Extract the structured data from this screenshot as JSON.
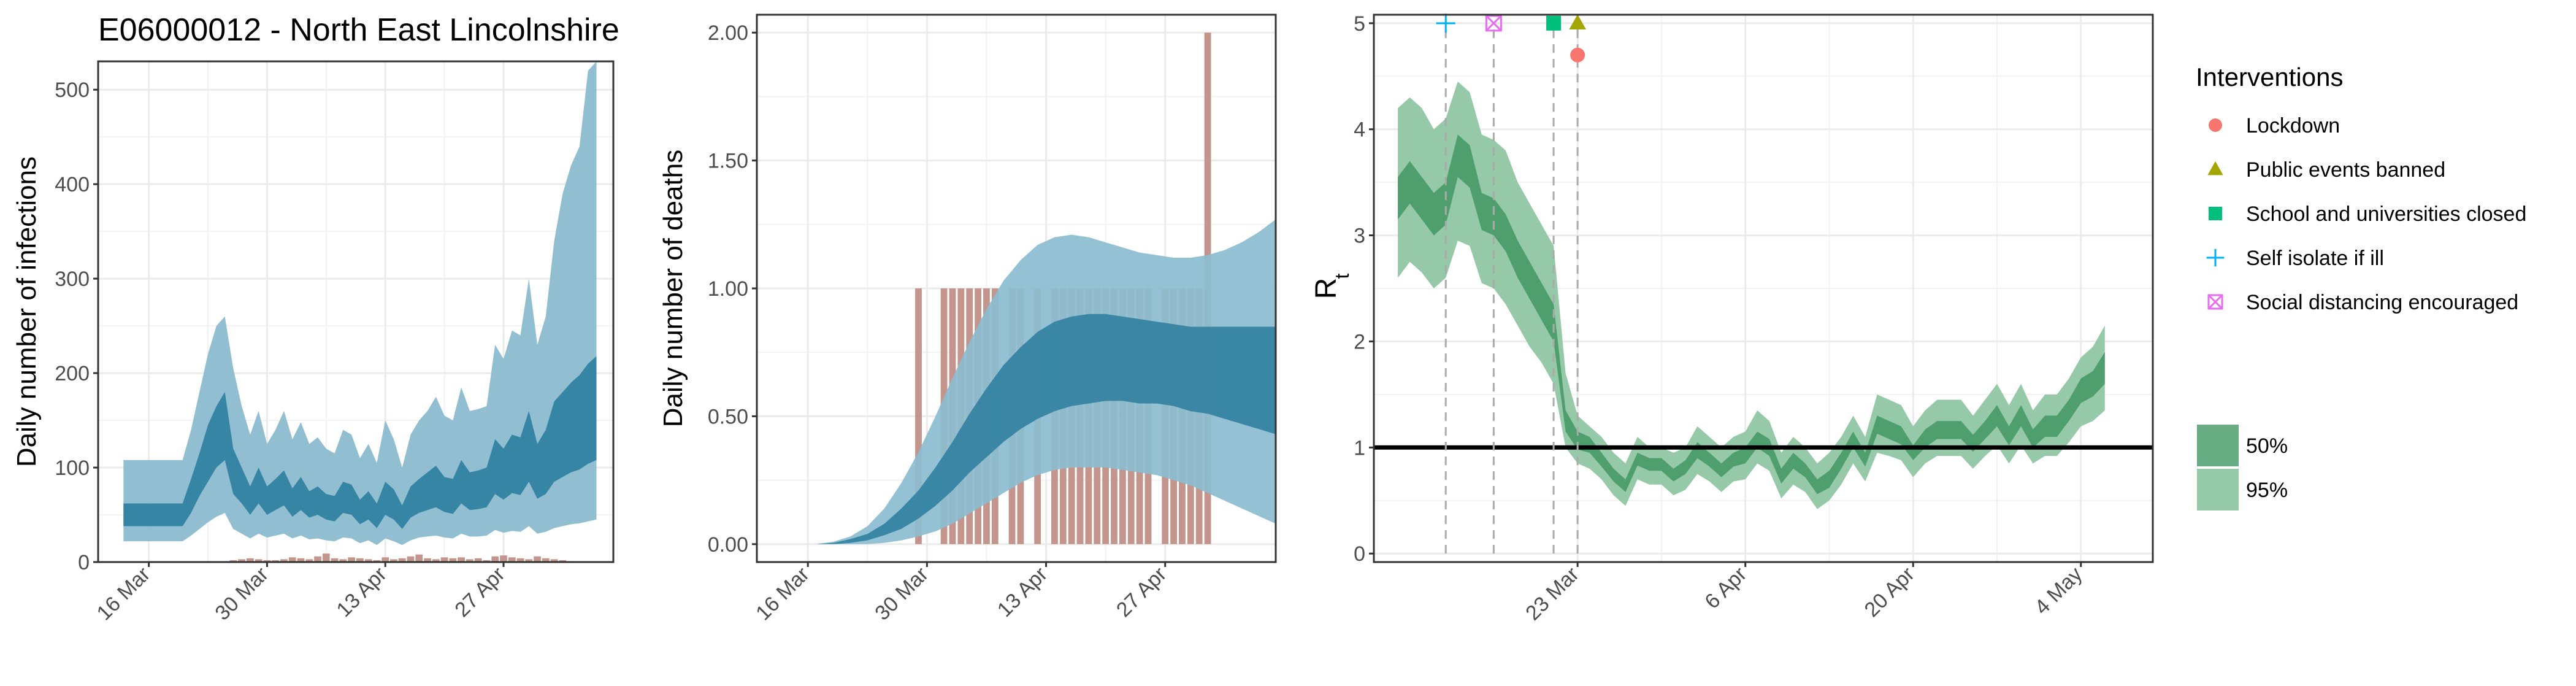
{
  "figure": {
    "region_title": "E06000012 - North East Lincolnshire",
    "colors": {
      "ribbon_outer": "#8BBCCF",
      "ribbon_inner": "#2E7E9E",
      "bars": "#C4958C",
      "rt_outer": "#95C9A8",
      "rt_inner": "#4E9E6E",
      "reference_line": "#000000",
      "gridline": "#EBEBEB",
      "panel_border": "#333333"
    }
  },
  "chart_data": [
    {
      "type": "area",
      "id": "infections",
      "ylabel": "Daily number of infections",
      "xlabel": "",
      "xticks": [
        "16 Mar",
        "30 Mar",
        "13 Apr",
        "27 Apr"
      ],
      "xlim": [
        "2020-03-10",
        "2020-05-10"
      ],
      "ylim": [
        0,
        530
      ],
      "yticks": [
        0,
        100,
        200,
        300,
        400,
        500
      ],
      "grid": true,
      "x": [
        "2020-03-13",
        "2020-03-14",
        "2020-03-15",
        "2020-03-16",
        "2020-03-17",
        "2020-03-18",
        "2020-03-19",
        "2020-03-20",
        "2020-03-21",
        "2020-03-22",
        "2020-03-23",
        "2020-03-24",
        "2020-03-25",
        "2020-03-26",
        "2020-03-27",
        "2020-03-28",
        "2020-03-29",
        "2020-03-30",
        "2020-03-31",
        "2020-04-01",
        "2020-04-02",
        "2020-04-03",
        "2020-04-04",
        "2020-04-05",
        "2020-04-06",
        "2020-04-07",
        "2020-04-08",
        "2020-04-09",
        "2020-04-10",
        "2020-04-11",
        "2020-04-12",
        "2020-04-13",
        "2020-04-14",
        "2020-04-15",
        "2020-04-16",
        "2020-04-17",
        "2020-04-18",
        "2020-04-19",
        "2020-04-20",
        "2020-04-21",
        "2020-04-22",
        "2020-04-23",
        "2020-04-24",
        "2020-04-25",
        "2020-04-26",
        "2020-04-27",
        "2020-04-28",
        "2020-04-29",
        "2020-04-30",
        "2020-05-01",
        "2020-05-02",
        "2020-05-03",
        "2020-05-04",
        "2020-05-05",
        "2020-05-06",
        "2020-05-07",
        "2020-05-08"
      ],
      "ci95_upper": [
        108,
        108,
        108,
        108,
        108,
        108,
        108,
        108,
        140,
        180,
        220,
        250,
        260,
        205,
        165,
        135,
        160,
        125,
        140,
        160,
        130,
        148,
        125,
        132,
        120,
        115,
        140,
        135,
        110,
        125,
        105,
        150,
        130,
        100,
        135,
        150,
        160,
        175,
        155,
        150,
        185,
        160,
        162,
        165,
        230,
        215,
        245,
        240,
        300,
        230,
        260,
        340,
        390,
        420,
        440,
        520,
        530
      ],
      "ci50_upper": [
        62,
        62,
        62,
        62,
        62,
        62,
        62,
        62,
        88,
        115,
        145,
        165,
        180,
        120,
        100,
        80,
        100,
        80,
        88,
        97,
        78,
        90,
        75,
        80,
        72,
        70,
        85,
        82,
        66,
        75,
        62,
        85,
        77,
        60,
        80,
        88,
        95,
        102,
        90,
        88,
        108,
        95,
        97,
        100,
        130,
        120,
        135,
        132,
        160,
        125,
        140,
        170,
        180,
        190,
        198,
        210,
        218
      ],
      "median": [
        48,
        48,
        48,
        48,
        48,
        48,
        48,
        48,
        66,
        88,
        110,
        130,
        140,
        93,
        80,
        64,
        80,
        64,
        70,
        78,
        62,
        72,
        60,
        64,
        58,
        56,
        68,
        66,
        53,
        60,
        48,
        66,
        60,
        47,
        62,
        68,
        73,
        78,
        70,
        68,
        83,
        73,
        75,
        78,
        98,
        90,
        100,
        98,
        118,
        93,
        100,
        120,
        128,
        135,
        140,
        150,
        155
      ],
      "ci50_lower": [
        38,
        38,
        38,
        38,
        38,
        38,
        38,
        38,
        52,
        70,
        85,
        100,
        108,
        72,
        62,
        50,
        62,
        50,
        55,
        60,
        48,
        55,
        47,
        50,
        45,
        43,
        52,
        50,
        40,
        45,
        36,
        50,
        45,
        35,
        47,
        52,
        55,
        58,
        53,
        51,
        62,
        55,
        56,
        58,
        72,
        66,
        73,
        71,
        85,
        67,
        72,
        85,
        90,
        95,
        98,
        104,
        108
      ],
      "ci95_lower": [
        22,
        22,
        22,
        22,
        22,
        22,
        22,
        22,
        28,
        35,
        42,
        48,
        52,
        35,
        30,
        25,
        30,
        26,
        28,
        30,
        25,
        28,
        24,
        25,
        23,
        22,
        26,
        25,
        20,
        23,
        18,
        25,
        22,
        18,
        23,
        26,
        27,
        28,
        26,
        25,
        30,
        27,
        27,
        28,
        34,
        31,
        33,
        32,
        38,
        30,
        32,
        36,
        38,
        40,
        41,
        43,
        45
      ],
      "observed_cases": [
        0,
        0,
        0,
        0,
        0,
        0,
        0,
        0,
        0,
        0,
        0,
        0,
        0,
        2,
        3,
        4,
        3,
        2,
        2,
        3,
        5,
        4,
        3,
        6,
        9,
        4,
        3,
        5,
        4,
        3,
        2,
        5,
        3,
        4,
        6,
        8,
        4,
        3,
        5,
        4,
        5,
        3,
        4,
        2,
        6,
        7,
        5,
        4,
        3,
        6,
        4,
        3,
        2,
        1,
        0,
        0,
        0
      ]
    },
    {
      "type": "area",
      "id": "deaths",
      "ylabel": "Daily number of deaths",
      "xlabel": "",
      "xticks": [
        "16 Mar",
        "30 Mar",
        "13 Apr",
        "27 Apr"
      ],
      "xlim": [
        "2020-03-10",
        "2020-05-10"
      ],
      "ylim": [
        -0.07,
        2.07
      ],
      "yticks": [
        0.0,
        0.5,
        1.0,
        1.5,
        2.0
      ],
      "ytick_labels": [
        "0.00",
        "0.50",
        "1.00",
        "1.50",
        "2.00"
      ],
      "grid": true,
      "x": [
        "2020-03-17",
        "2020-03-19",
        "2020-03-21",
        "2020-03-23",
        "2020-03-25",
        "2020-03-27",
        "2020-03-29",
        "2020-03-31",
        "2020-04-02",
        "2020-04-04",
        "2020-04-06",
        "2020-04-08",
        "2020-04-10",
        "2020-04-12",
        "2020-04-14",
        "2020-04-16",
        "2020-04-18",
        "2020-04-20",
        "2020-04-22",
        "2020-04-24",
        "2020-04-26",
        "2020-04-28",
        "2020-04-30",
        "2020-05-02",
        "2020-05-04",
        "2020-05-06",
        "2020-05-08",
        "2020-05-10"
      ],
      "ci95_upper": [
        0.0,
        0.01,
        0.03,
        0.07,
        0.14,
        0.24,
        0.36,
        0.5,
        0.65,
        0.79,
        0.92,
        1.03,
        1.11,
        1.17,
        1.2,
        1.21,
        1.2,
        1.18,
        1.16,
        1.14,
        1.13,
        1.12,
        1.12,
        1.13,
        1.15,
        1.18,
        1.22,
        1.27
      ],
      "ci50_upper": [
        0.0,
        0.005,
        0.02,
        0.04,
        0.08,
        0.14,
        0.21,
        0.3,
        0.4,
        0.51,
        0.61,
        0.7,
        0.77,
        0.83,
        0.87,
        0.89,
        0.9,
        0.9,
        0.89,
        0.88,
        0.87,
        0.86,
        0.85,
        0.85,
        0.85,
        0.85,
        0.85,
        0.85
      ],
      "ci50_lower": [
        0.0,
        0.0,
        0.005,
        0.015,
        0.035,
        0.06,
        0.1,
        0.15,
        0.21,
        0.28,
        0.34,
        0.4,
        0.45,
        0.49,
        0.52,
        0.54,
        0.55,
        0.56,
        0.56,
        0.55,
        0.55,
        0.54,
        0.52,
        0.51,
        0.49,
        0.47,
        0.45,
        0.43
      ],
      "ci95_lower": [
        0.0,
        0.0,
        0.0,
        0.0,
        0.005,
        0.015,
        0.03,
        0.05,
        0.08,
        0.12,
        0.16,
        0.2,
        0.24,
        0.27,
        0.29,
        0.3,
        0.3,
        0.3,
        0.29,
        0.28,
        0.27,
        0.25,
        0.23,
        0.2,
        0.17,
        0.14,
        0.11,
        0.08
      ],
      "observed_dates": [
        "2020-03-29",
        "2020-04-01",
        "2020-04-02",
        "2020-04-03",
        "2020-04-04",
        "2020-04-05",
        "2020-04-06",
        "2020-04-07",
        "2020-04-09",
        "2020-04-10",
        "2020-04-12",
        "2020-04-14",
        "2020-04-15",
        "2020-04-16",
        "2020-04-17",
        "2020-04-18",
        "2020-04-19",
        "2020-04-20",
        "2020-04-21",
        "2020-04-22",
        "2020-04-23",
        "2020-04-24",
        "2020-04-25",
        "2020-04-27",
        "2020-04-28",
        "2020-04-29",
        "2020-04-30",
        "2020-05-01",
        "2020-05-02"
      ],
      "observed_deaths": [
        1,
        1,
        1,
        1,
        1,
        1,
        1,
        1,
        1,
        1,
        1,
        1,
        1,
        1,
        1,
        1,
        1,
        1,
        1,
        1,
        1,
        1,
        1,
        1,
        1,
        1,
        1,
        1,
        2
      ]
    },
    {
      "type": "area",
      "id": "rt",
      "ylabel_main": "R",
      "ylabel_sub": "t",
      "xlabel": "",
      "xticks": [
        "23 Mar",
        "6 Apr",
        "20 Apr",
        "4 May"
      ],
      "xlim": [
        "2020-03-06",
        "2020-05-10"
      ],
      "ylim": [
        -0.08,
        5.08
      ],
      "yticks": [
        0,
        1,
        2,
        3,
        4,
        5
      ],
      "grid": true,
      "reference_line": 1,
      "x": [
        "2020-03-08",
        "2020-03-09",
        "2020-03-10",
        "2020-03-11",
        "2020-03-12",
        "2020-03-13",
        "2020-03-14",
        "2020-03-15",
        "2020-03-16",
        "2020-03-17",
        "2020-03-18",
        "2020-03-19",
        "2020-03-20",
        "2020-03-21",
        "2020-03-22",
        "2020-03-23",
        "2020-03-24",
        "2020-03-25",
        "2020-03-26",
        "2020-03-27",
        "2020-03-28",
        "2020-03-29",
        "2020-03-30",
        "2020-03-31",
        "2020-04-01",
        "2020-04-02",
        "2020-04-03",
        "2020-04-04",
        "2020-04-05",
        "2020-04-06",
        "2020-04-07",
        "2020-04-08",
        "2020-04-09",
        "2020-04-10",
        "2020-04-11",
        "2020-04-12",
        "2020-04-13",
        "2020-04-14",
        "2020-04-15",
        "2020-04-16",
        "2020-04-17",
        "2020-04-18",
        "2020-04-19",
        "2020-04-20",
        "2020-04-21",
        "2020-04-22",
        "2020-04-23",
        "2020-04-24",
        "2020-04-25",
        "2020-04-26",
        "2020-04-27",
        "2020-04-28",
        "2020-04-29",
        "2020-04-30",
        "2020-05-01",
        "2020-05-02",
        "2020-05-03",
        "2020-05-04",
        "2020-05-05",
        "2020-05-06"
      ],
      "ci95_upper": [
        4.2,
        4.3,
        4.2,
        4.0,
        4.1,
        4.45,
        4.35,
        3.95,
        3.9,
        3.8,
        3.5,
        3.3,
        3.1,
        2.9,
        1.7,
        1.3,
        1.2,
        1.1,
        0.95,
        0.85,
        1.1,
        1.0,
        1.0,
        0.95,
        1.0,
        1.2,
        1.1,
        1.0,
        1.1,
        1.15,
        1.35,
        1.25,
        0.95,
        1.1,
        1.0,
        0.85,
        0.95,
        1.1,
        1.3,
        1.1,
        1.5,
        1.45,
        1.4,
        1.2,
        1.35,
        1.45,
        1.45,
        1.45,
        1.3,
        1.45,
        1.6,
        1.4,
        1.6,
        1.35,
        1.5,
        1.5,
        1.65,
        1.85,
        1.95,
        2.15
      ],
      "ci50_upper": [
        3.55,
        3.7,
        3.55,
        3.4,
        3.5,
        3.95,
        3.85,
        3.4,
        3.35,
        3.2,
        2.95,
        2.75,
        2.55,
        2.35,
        1.35,
        1.15,
        1.1,
        0.95,
        0.8,
        0.7,
        0.95,
        0.9,
        0.9,
        0.8,
        0.88,
        1.05,
        0.95,
        0.85,
        0.95,
        1.0,
        1.15,
        1.08,
        0.8,
        0.95,
        0.85,
        0.7,
        0.78,
        0.95,
        1.15,
        0.95,
        1.3,
        1.25,
        1.2,
        1.02,
        1.17,
        1.25,
        1.25,
        1.25,
        1.12,
        1.25,
        1.4,
        1.2,
        1.4,
        1.17,
        1.3,
        1.3,
        1.45,
        1.65,
        1.72,
        1.9
      ],
      "ci50_lower": [
        3.15,
        3.3,
        3.15,
        3.0,
        3.1,
        3.55,
        3.45,
        3.05,
        3.0,
        2.85,
        2.6,
        2.4,
        2.2,
        2.0,
        1.15,
        0.98,
        0.95,
        0.82,
        0.68,
        0.58,
        0.83,
        0.78,
        0.78,
        0.68,
        0.75,
        0.9,
        0.82,
        0.72,
        0.82,
        0.85,
        1.0,
        0.92,
        0.66,
        0.8,
        0.72,
        0.56,
        0.62,
        0.8,
        1.0,
        0.82,
        1.13,
        1.08,
        1.03,
        0.88,
        1.0,
        1.08,
        1.08,
        1.08,
        0.96,
        1.08,
        1.2,
        1.02,
        1.2,
        1.0,
        1.1,
        1.1,
        1.25,
        1.42,
        1.48,
        1.6
      ],
      "ci95_lower": [
        2.6,
        2.75,
        2.65,
        2.5,
        2.6,
        2.95,
        2.9,
        2.55,
        2.5,
        2.35,
        2.15,
        1.95,
        1.8,
        1.6,
        1.0,
        0.85,
        0.8,
        0.7,
        0.55,
        0.45,
        0.7,
        0.65,
        0.65,
        0.55,
        0.6,
        0.75,
        0.68,
        0.58,
        0.68,
        0.7,
        0.85,
        0.78,
        0.52,
        0.65,
        0.58,
        0.42,
        0.5,
        0.65,
        0.85,
        0.68,
        0.95,
        0.92,
        0.88,
        0.72,
        0.85,
        0.92,
        0.92,
        0.92,
        0.8,
        0.92,
        1.02,
        0.85,
        1.02,
        0.85,
        0.92,
        0.92,
        1.05,
        1.2,
        1.25,
        1.35
      ],
      "interventions": [
        {
          "name": "Self isolate if ill",
          "date": "2020-03-12",
          "y": 5.0,
          "shape": "plus",
          "color": "#00B0F6"
        },
        {
          "name": "Social distancing encouraged",
          "date": "2020-03-16",
          "y": 5.0,
          "shape": "boxcross",
          "color": "#E76BF3"
        },
        {
          "name": "School and universities closed",
          "date": "2020-03-21",
          "y": 5.0,
          "shape": "square",
          "color": "#00BF7D"
        },
        {
          "name": "Public events banned",
          "date": "2020-03-23",
          "y": 5.0,
          "shape": "triangle",
          "color": "#A3A500"
        },
        {
          "name": "Lockdown",
          "date": "2020-03-23",
          "y": 4.7,
          "shape": "circle",
          "color": "#F8766D"
        }
      ],
      "legend_title": "Interventions",
      "legend_order": [
        "Lockdown",
        "Public events banned",
        "School and universities closed",
        "Self isolate if ill",
        "Social distancing encouraged"
      ],
      "band_legend": [
        "50%",
        "95%"
      ],
      "legend_placement": "right"
    }
  ]
}
